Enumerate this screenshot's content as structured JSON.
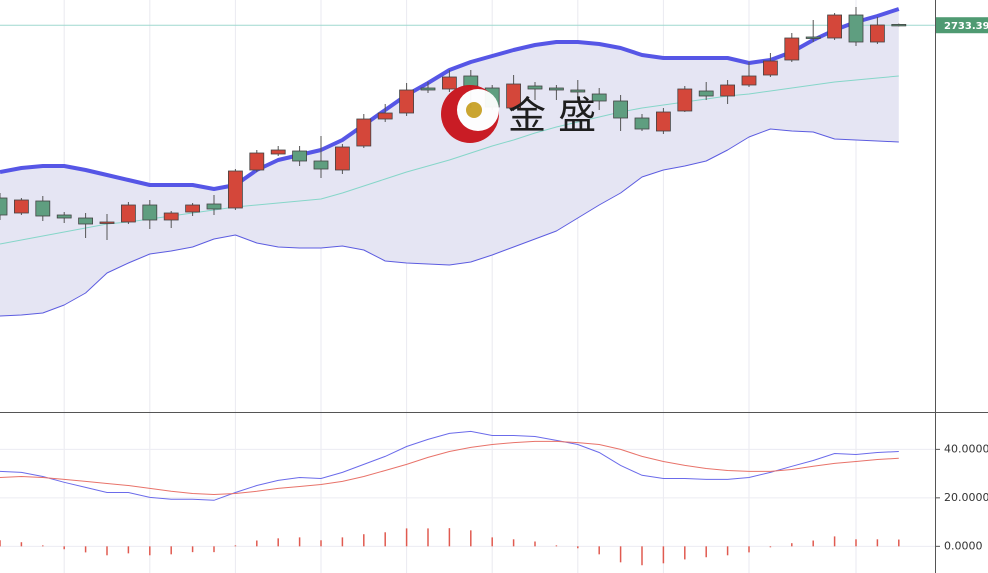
{
  "chart_data": [
    {
      "type": "candlestick",
      "ylim": [
        2540,
        2746
      ],
      "up_color": "#d4473a",
      "down_color": "#5f9e80",
      "open": [
        2647,
        2639.5,
        2645.5,
        2638.5,
        2637,
        2634.5,
        2635,
        2643.5,
        2636,
        2640,
        2644,
        2642,
        2661,
        2669,
        2670.5,
        2665.5,
        2661,
        2673,
        2686.5,
        2689.5,
        2702,
        2701.5,
        2708,
        2702,
        2692,
        2703,
        2702,
        2701,
        2699,
        2695.5,
        2687,
        2680.5,
        2690.5,
        2700.5,
        2698,
        2703.5,
        2708.5,
        2716,
        2727.5,
        2727,
        2738.5,
        2725,
        2733.8
      ],
      "high": [
        2649.5,
        2647,
        2648,
        2640,
        2639.5,
        2639,
        2645,
        2646,
        2640.5,
        2644.5,
        2648.5,
        2661.5,
        2671,
        2673,
        2673,
        2678,
        2674,
        2689,
        2694,
        2704.5,
        2705,
        2711,
        2711,
        2703.5,
        2708.5,
        2705,
        2703.5,
        2706,
        2702,
        2698.5,
        2689,
        2692,
        2703,
        2705,
        2706,
        2715,
        2719.5,
        2729.5,
        2736,
        2739.5,
        2742.5,
        2737.5,
        2734.2
      ],
      "low": [
        2636,
        2638.5,
        2635.5,
        2634.5,
        2627,
        2626,
        2634,
        2631.5,
        2632,
        2638,
        2638.5,
        2641,
        2660,
        2668,
        2663,
        2657,
        2659,
        2672,
        2685,
        2688,
        2699.5,
        2700,
        2692,
        2691,
        2690.5,
        2696,
        2696,
        2695,
        2691,
        2680.5,
        2680.5,
        2679,
        2690,
        2696,
        2694,
        2702.5,
        2707.5,
        2715,
        2725,
        2726,
        2723,
        2724,
        2732.8
      ],
      "close": [
        2638.5,
        2646,
        2638,
        2637,
        2634,
        2635,
        2643.5,
        2636,
        2639.5,
        2643.5,
        2641.5,
        2660.5,
        2669.5,
        2671,
        2665.5,
        2661.5,
        2672.5,
        2686.5,
        2689.5,
        2701,
        2701,
        2707.5,
        2703,
        2692.5,
        2704,
        2701.5,
        2701,
        2700,
        2695.5,
        2687,
        2681.5,
        2690,
        2701.5,
        2698,
        2703.5,
        2708,
        2715.5,
        2727,
        2727,
        2738.5,
        2725,
        2733.5,
        2733.39
      ],
      "bands": [
        {
          "color": "#5656e6",
          "values": [
            2660,
            2662,
            2663,
            2663,
            2661,
            2658.5,
            2656,
            2653.5,
            2653.5,
            2653.5,
            2651.5,
            2653.5,
            2661,
            2666,
            2668.5,
            2671,
            2676,
            2683.5,
            2691,
            2698.5,
            2704.5,
            2711,
            2715,
            2718,
            2721,
            2723.5,
            2725,
            2725,
            2724,
            2722,
            2718.5,
            2717,
            2717,
            2717,
            2717,
            2714.5,
            2716,
            2720,
            2726,
            2731,
            2735,
            2738,
            2741.5
          ]
        },
        {
          "color": "#86d6c9",
          "values": [
            2624,
            2626,
            2628,
            2630,
            2632,
            2634,
            2635,
            2636.5,
            2638,
            2639.5,
            2641,
            2642.5,
            2643.5,
            2644.5,
            2645.5,
            2646.5,
            2649.5,
            2653,
            2656.5,
            2660,
            2663,
            2666,
            2669.5,
            2673,
            2676,
            2679.5,
            2682.5,
            2685,
            2687.5,
            2690,
            2692,
            2693.5,
            2695,
            2696.5,
            2698,
            2699,
            2700.5,
            2702,
            2703.5,
            2705,
            2706,
            2707,
            2708
          ]
        },
        {
          "color": "#5c5ce0",
          "values": [
            2588,
            2588.5,
            2589.5,
            2593.5,
            2599.5,
            2609.5,
            2614.5,
            2619,
            2620.5,
            2622.5,
            2626.5,
            2628.5,
            2624.5,
            2622.5,
            2622,
            2622,
            2623,
            2621,
            2615.5,
            2614.5,
            2614,
            2613.5,
            2615,
            2618.5,
            2622.5,
            2626.5,
            2630.5,
            2637,
            2643.5,
            2649.5,
            2657.5,
            2661,
            2663,
            2665.5,
            2671,
            2677.5,
            2681.5,
            2680.5,
            2680,
            2676.5,
            2676,
            2675.5,
            2675
          ]
        }
      ],
      "band_fill": "#e5e5f3",
      "last_price": 2733.39,
      "last_price_color": "#4f9a72",
      "watermark": "金 盛"
    },
    {
      "type": "macd",
      "ylim": [
        -11,
        55
      ],
      "yticks": [
        {
          "value": 0,
          "label": "0.0000"
        },
        {
          "value": 20,
          "label": "20.0000"
        },
        {
          "value": 40,
          "label": "40.0000"
        }
      ],
      "grid": true,
      "series": [
        {
          "color": "#6b6bea",
          "values": [
            30.9,
            30.5,
            28.8,
            26.4,
            24.3,
            22.2,
            22.2,
            20.2,
            19.4,
            19.4,
            19.0,
            22.2,
            25.1,
            27.2,
            28.4,
            28.0,
            30.5,
            33.8,
            37.1,
            41.2,
            44.1,
            46.6,
            47.4,
            45.7,
            45.7,
            45.3,
            43.7,
            42.0,
            38.7,
            33.4,
            29.3,
            28.0,
            28.0,
            27.6,
            27.6,
            28.4,
            30.5,
            33.0,
            35.4,
            38.3,
            37.9,
            38.7,
            39.1
          ]
        },
        {
          "color": "#e8736a",
          "values": [
            28.4,
            28.8,
            28.4,
            27.6,
            26.8,
            25.9,
            25.1,
            23.9,
            22.7,
            21.8,
            21.4,
            21.8,
            22.7,
            23.9,
            24.7,
            25.5,
            26.8,
            28.8,
            31.3,
            33.8,
            36.7,
            39.1,
            40.8,
            42.0,
            42.8,
            43.3,
            43.3,
            42.8,
            42.0,
            40.0,
            37.1,
            35.0,
            33.4,
            32.1,
            31.3,
            30.9,
            30.9,
            31.7,
            33.0,
            34.2,
            35.0,
            35.8,
            36.3
          ]
        }
      ],
      "histogram": {
        "color": "#e05a50",
        "values": [
          2.5,
          1.7,
          0.4,
          -1.2,
          -2.5,
          -3.7,
          -2.9,
          -3.7,
          -3.3,
          -2.4,
          -2.4,
          0.4,
          2.4,
          3.3,
          3.7,
          2.5,
          3.7,
          5.0,
          5.8,
          7.4,
          7.4,
          7.5,
          6.6,
          3.7,
          2.9,
          2.0,
          0.4,
          -0.8,
          -3.3,
          -6.6,
          -7.8,
          -7.0,
          -5.4,
          -4.5,
          -3.7,
          -2.5,
          -0.4,
          1.3,
          2.4,
          4.1,
          2.9,
          2.9,
          2.8
        ]
      }
    }
  ]
}
